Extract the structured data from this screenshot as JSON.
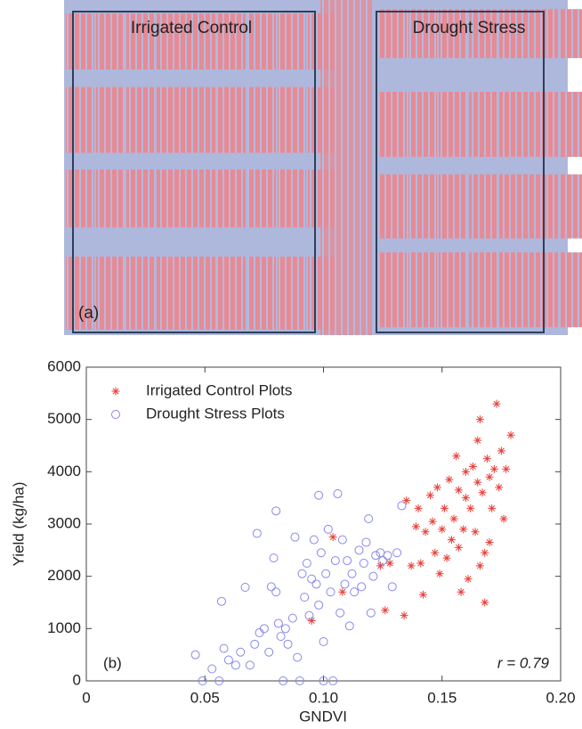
{
  "panel_a": {
    "labels": [
      "Irrigated Control",
      "Drought Stress"
    ],
    "panel_label": "(a)"
  },
  "chart_data": {
    "type": "scatter",
    "xlabel": "GNDVI",
    "ylabel": "Yield (kg/ha)",
    "xlim": [
      0,
      0.2
    ],
    "ylim": [
      0,
      6000
    ],
    "xticks": [
      0,
      0.05,
      {
        "value": 0.1,
        "label": "0.10"
      },
      0.15,
      {
        "value": 0.2,
        "label": "0.20"
      }
    ],
    "yticks": [
      0,
      1000,
      2000,
      3000,
      4000,
      5000,
      6000
    ],
    "legend": "upper left",
    "annotations": [
      "(b)",
      "r = 0.79"
    ],
    "series": [
      {
        "name": "Irrigated Control Plots",
        "color": "#e8403a",
        "marker": "asterisk",
        "x": [
          0.095,
          0.104,
          0.108,
          0.124,
          0.126,
          0.128,
          0.134,
          0.135,
          0.137,
          0.139,
          0.14,
          0.141,
          0.142,
          0.143,
          0.145,
          0.146,
          0.147,
          0.148,
          0.149,
          0.15,
          0.151,
          0.152,
          0.153,
          0.154,
          0.155,
          0.156,
          0.157,
          0.157,
          0.158,
          0.159,
          0.16,
          0.16,
          0.161,
          0.162,
          0.163,
          0.164,
          0.165,
          0.165,
          0.166,
          0.166,
          0.167,
          0.168,
          0.168,
          0.169,
          0.17,
          0.17,
          0.171,
          0.172,
          0.173,
          0.174,
          0.175,
          0.176,
          0.177,
          0.179
        ],
        "values": [
          1150,
          2750,
          1700,
          2200,
          1350,
          2250,
          1250,
          3450,
          2200,
          2950,
          3300,
          2250,
          1650,
          2850,
          3550,
          3050,
          2450,
          3700,
          2050,
          2900,
          3300,
          2350,
          3850,
          2700,
          3100,
          4300,
          2550,
          3650,
          1700,
          2900,
          3500,
          4000,
          1950,
          3300,
          4100,
          2850,
          3800,
          4600,
          5000,
          2200,
          3600,
          1500,
          2450,
          4250,
          3900,
          2650,
          3300,
          4050,
          5300,
          3700,
          4400,
          3100,
          4050,
          4700
        ]
      },
      {
        "name": "Drought Stress Plots",
        "color": "#8888ee",
        "marker": "circle",
        "x": [
          0.046,
          0.049,
          0.053,
          0.056,
          0.057,
          0.058,
          0.06,
          0.063,
          0.065,
          0.067,
          0.069,
          0.071,
          0.072,
          0.073,
          0.075,
          0.077,
          0.078,
          0.079,
          0.08,
          0.08,
          0.081,
          0.082,
          0.083,
          0.084,
          0.085,
          0.087,
          0.088,
          0.089,
          0.09,
          0.091,
          0.092,
          0.093,
          0.094,
          0.095,
          0.096,
          0.097,
          0.098,
          0.098,
          0.099,
          0.1,
          0.1,
          0.101,
          0.102,
          0.103,
          0.104,
          0.105,
          0.106,
          0.107,
          0.108,
          0.109,
          0.11,
          0.111,
          0.112,
          0.113,
          0.115,
          0.116,
          0.117,
          0.118,
          0.119,
          0.12,
          0.121,
          0.122,
          0.124,
          0.125,
          0.127,
          0.129,
          0.131,
          0.133
        ],
        "values": [
          500,
          0,
          230,
          0,
          1520,
          620,
          400,
          300,
          550,
          1790,
          300,
          700,
          2820,
          920,
          1000,
          550,
          1800,
          2350,
          1700,
          3250,
          1100,
          850,
          0,
          1000,
          700,
          1200,
          2750,
          450,
          0,
          2050,
          1600,
          2250,
          1250,
          1950,
          2700,
          1850,
          1450,
          3550,
          2450,
          750,
          0,
          2050,
          2900,
          1700,
          0,
          2300,
          3580,
          1300,
          2700,
          1850,
          2300,
          1050,
          2050,
          1700,
          2500,
          1800,
          2250,
          2650,
          3100,
          1300,
          2000,
          2400,
          2450,
          2300,
          2400,
          1800,
          2450,
          3350
        ]
      }
    ]
  }
}
